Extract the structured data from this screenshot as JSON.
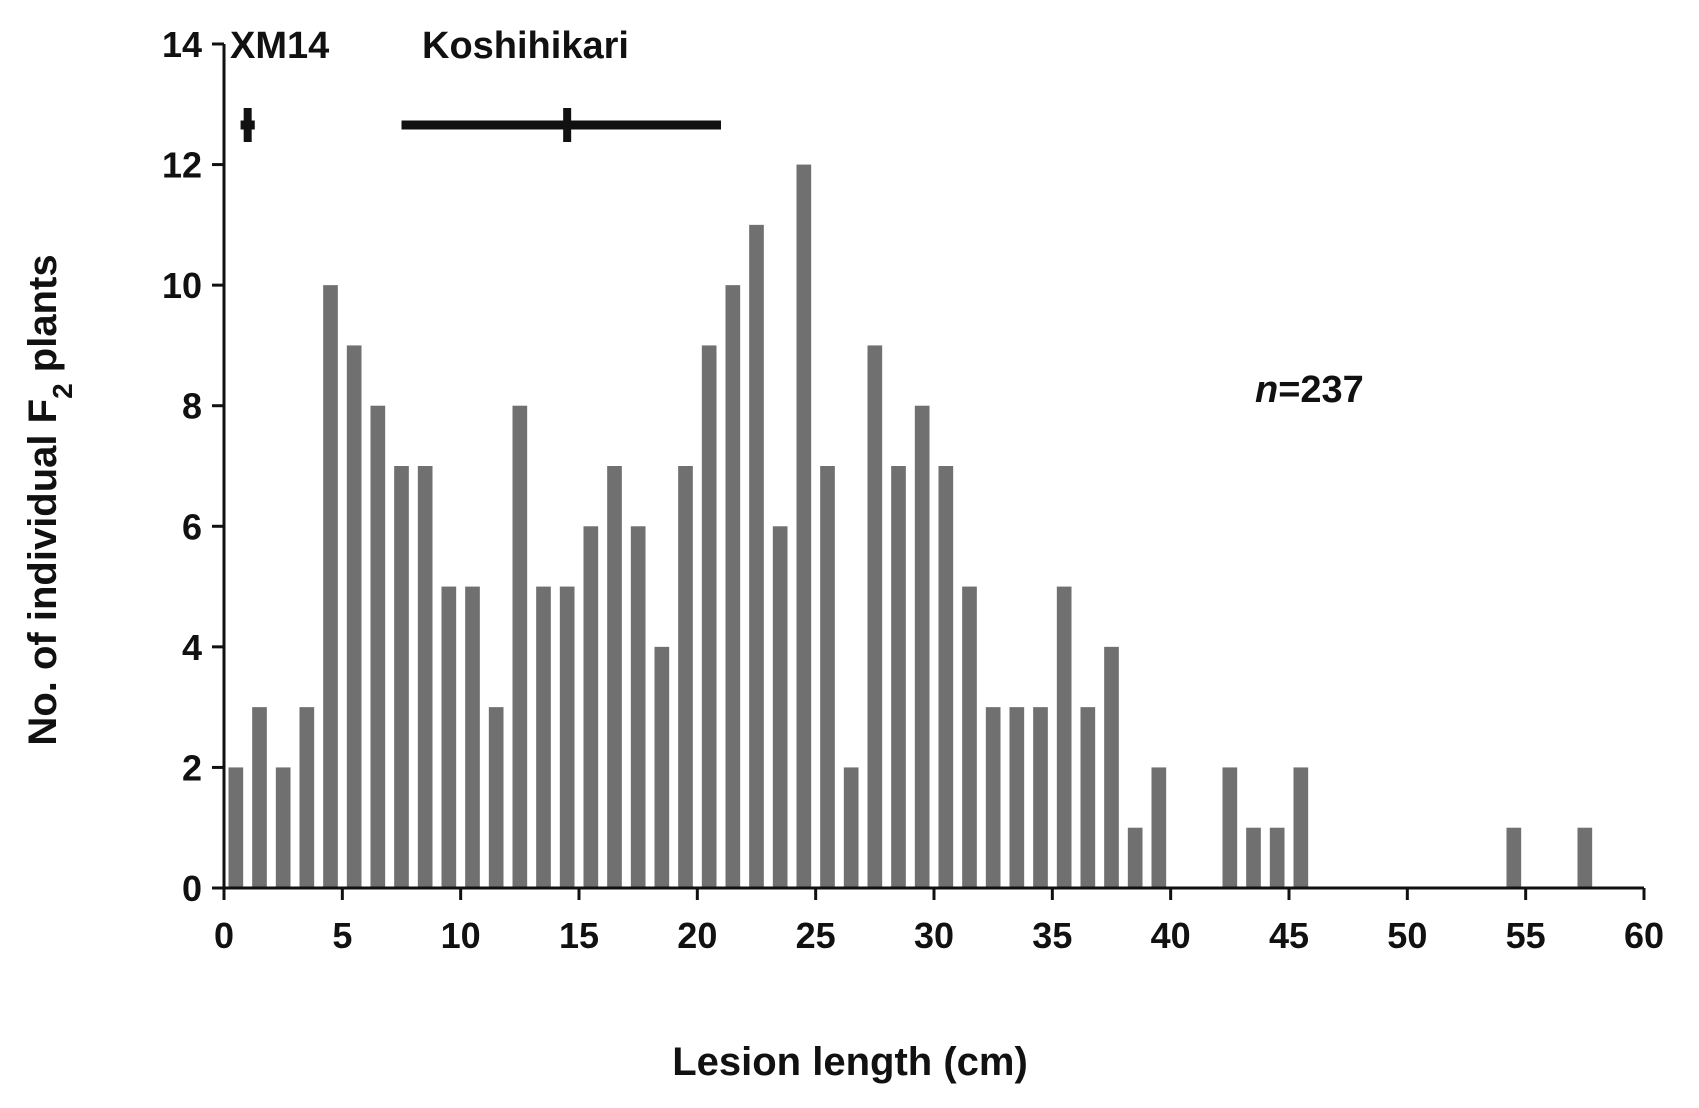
{
  "chart_data": {
    "type": "bar",
    "xlabel": "Lesion length (cm)",
    "ylabel_prefix": "No. of individual F",
    "ylabel_sub": "2",
    "ylabel_suffix": " plants",
    "xlim": [
      0,
      60
    ],
    "ylim": [
      0,
      14
    ],
    "x_ticks": [
      0,
      5,
      10,
      15,
      20,
      25,
      30,
      35,
      40,
      45,
      50,
      55,
      60
    ],
    "y_ticks": [
      0,
      2,
      4,
      6,
      8,
      10,
      12,
      14
    ],
    "bar_color": "#707070",
    "annotation_prefix": "n",
    "annotation_suffix": "=237",
    "parents": [
      {
        "name": "XM14",
        "mean": 1,
        "range": [
          0.7,
          1.3
        ]
      },
      {
        "name": "Koshihikari",
        "mean": 14.5,
        "range": [
          7.5,
          21
        ]
      }
    ],
    "x": [
      0.5,
      1.5,
      2.5,
      3.5,
      4.5,
      5.5,
      6.5,
      7.5,
      8.5,
      9.5,
      10.5,
      11.5,
      12.5,
      13.5,
      14.5,
      15.5,
      16.5,
      17.5,
      18.5,
      19.5,
      20.5,
      21.5,
      22.5,
      23.5,
      24.5,
      25.5,
      26.5,
      27.5,
      28.5,
      29.5,
      30.5,
      31.5,
      32.5,
      33.5,
      34.5,
      35.5,
      36.5,
      37.5,
      38.5,
      39.5,
      42.5,
      43.5,
      44.5,
      45.5,
      54.5,
      57.5
    ],
    "values": [
      2,
      3,
      2,
      3,
      10,
      9,
      8,
      7,
      7,
      5,
      5,
      3,
      8,
      5,
      5,
      6,
      7,
      6,
      4,
      7,
      9,
      10,
      11,
      6,
      12,
      7,
      2,
      9,
      7,
      8,
      7,
      5,
      3,
      3,
      3,
      5,
      3,
      4,
      1,
      2,
      2,
      1,
      1,
      2,
      1,
      1
    ]
  }
}
